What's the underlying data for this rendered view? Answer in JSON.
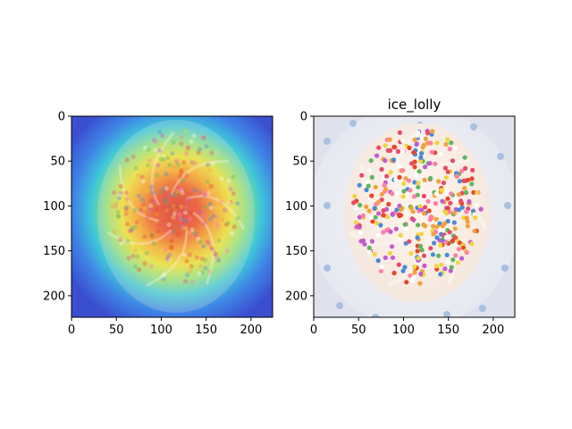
{
  "figure": {
    "background": "#ffffff"
  },
  "chart_data": [
    {
      "type": "heatmap",
      "title": "",
      "xlabel": "",
      "ylabel": "",
      "content": "Grad-CAM heatmap overlay on a sprinkle-covered cupcake",
      "xlim": [
        0,
        224
      ],
      "ylim": [
        224,
        0
      ],
      "xticks": [
        0,
        50,
        100,
        150,
        200
      ],
      "yticks": [
        0,
        50,
        100,
        150,
        200
      ],
      "grid": false,
      "colormap": "jet",
      "hotspot_center": [
        115,
        105
      ]
    },
    {
      "type": "heatmap",
      "title": "ice_lolly",
      "xlabel": "",
      "ylabel": "",
      "content": "Original image of a cupcake with white frosting and rainbow sprinkles on a polka-dot plate",
      "xlim": [
        0,
        224
      ],
      "ylim": [
        224,
        0
      ],
      "xticks": [
        0,
        50,
        100,
        150,
        200
      ],
      "yticks": [
        0,
        50,
        100,
        150,
        200
      ],
      "grid": false
    }
  ]
}
